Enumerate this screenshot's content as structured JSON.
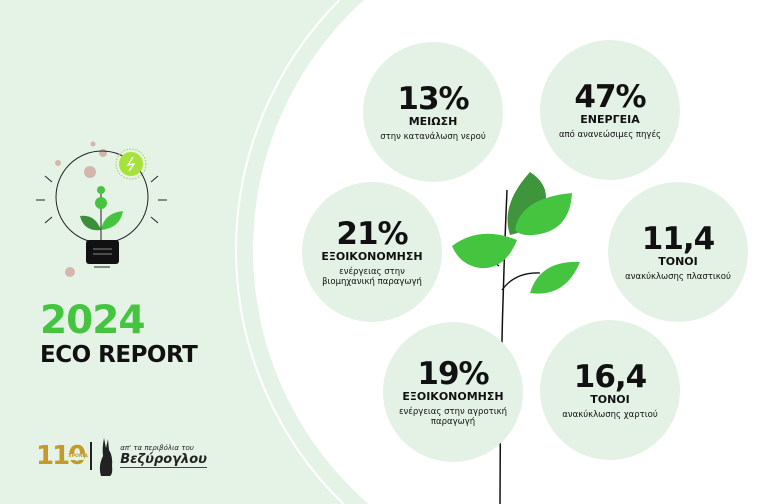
{
  "report": {
    "year": "2024",
    "title": "ECO REPORT"
  },
  "logo": {
    "anniversary": "110",
    "anniversary_sub": "ΧΡΟΝΙΑ",
    "tagline": "απ' τα περιβόλια του",
    "brand": "Βεζύρογλου"
  },
  "colors": {
    "accent_green": "#45c43f",
    "background": "#e5f3e7",
    "circle": "#e3f2e5",
    "gold": "#c49a2b"
  },
  "stats": [
    {
      "value": "13%",
      "label": "ΜΕΙΩΣΗ",
      "desc": "στην κατανάλωση νερού"
    },
    {
      "value": "47%",
      "label": "ΕΝΕΡΓΕΙΑ",
      "desc": "από ανανεώσιμες πηγές"
    },
    {
      "value": "21%",
      "label": "ΕΞΟΙΚΟΝΟΜΗΣΗ",
      "desc": "ενέργειας στην βιομηχανική παραγωγή"
    },
    {
      "value": "11,4",
      "label": "ΤΟΝΟΙ",
      "desc": "ανακύκλωσης πλαστικού"
    },
    {
      "value": "19%",
      "label": "ΕΞΟΙΚΟΝΟΜΗΣΗ",
      "desc": "ενέργειας στην αγροτική παραγωγή"
    },
    {
      "value": "16,4",
      "label": "ΤΟΝΟΙ",
      "desc": "ανακύκλωσης χαρτιού"
    }
  ]
}
